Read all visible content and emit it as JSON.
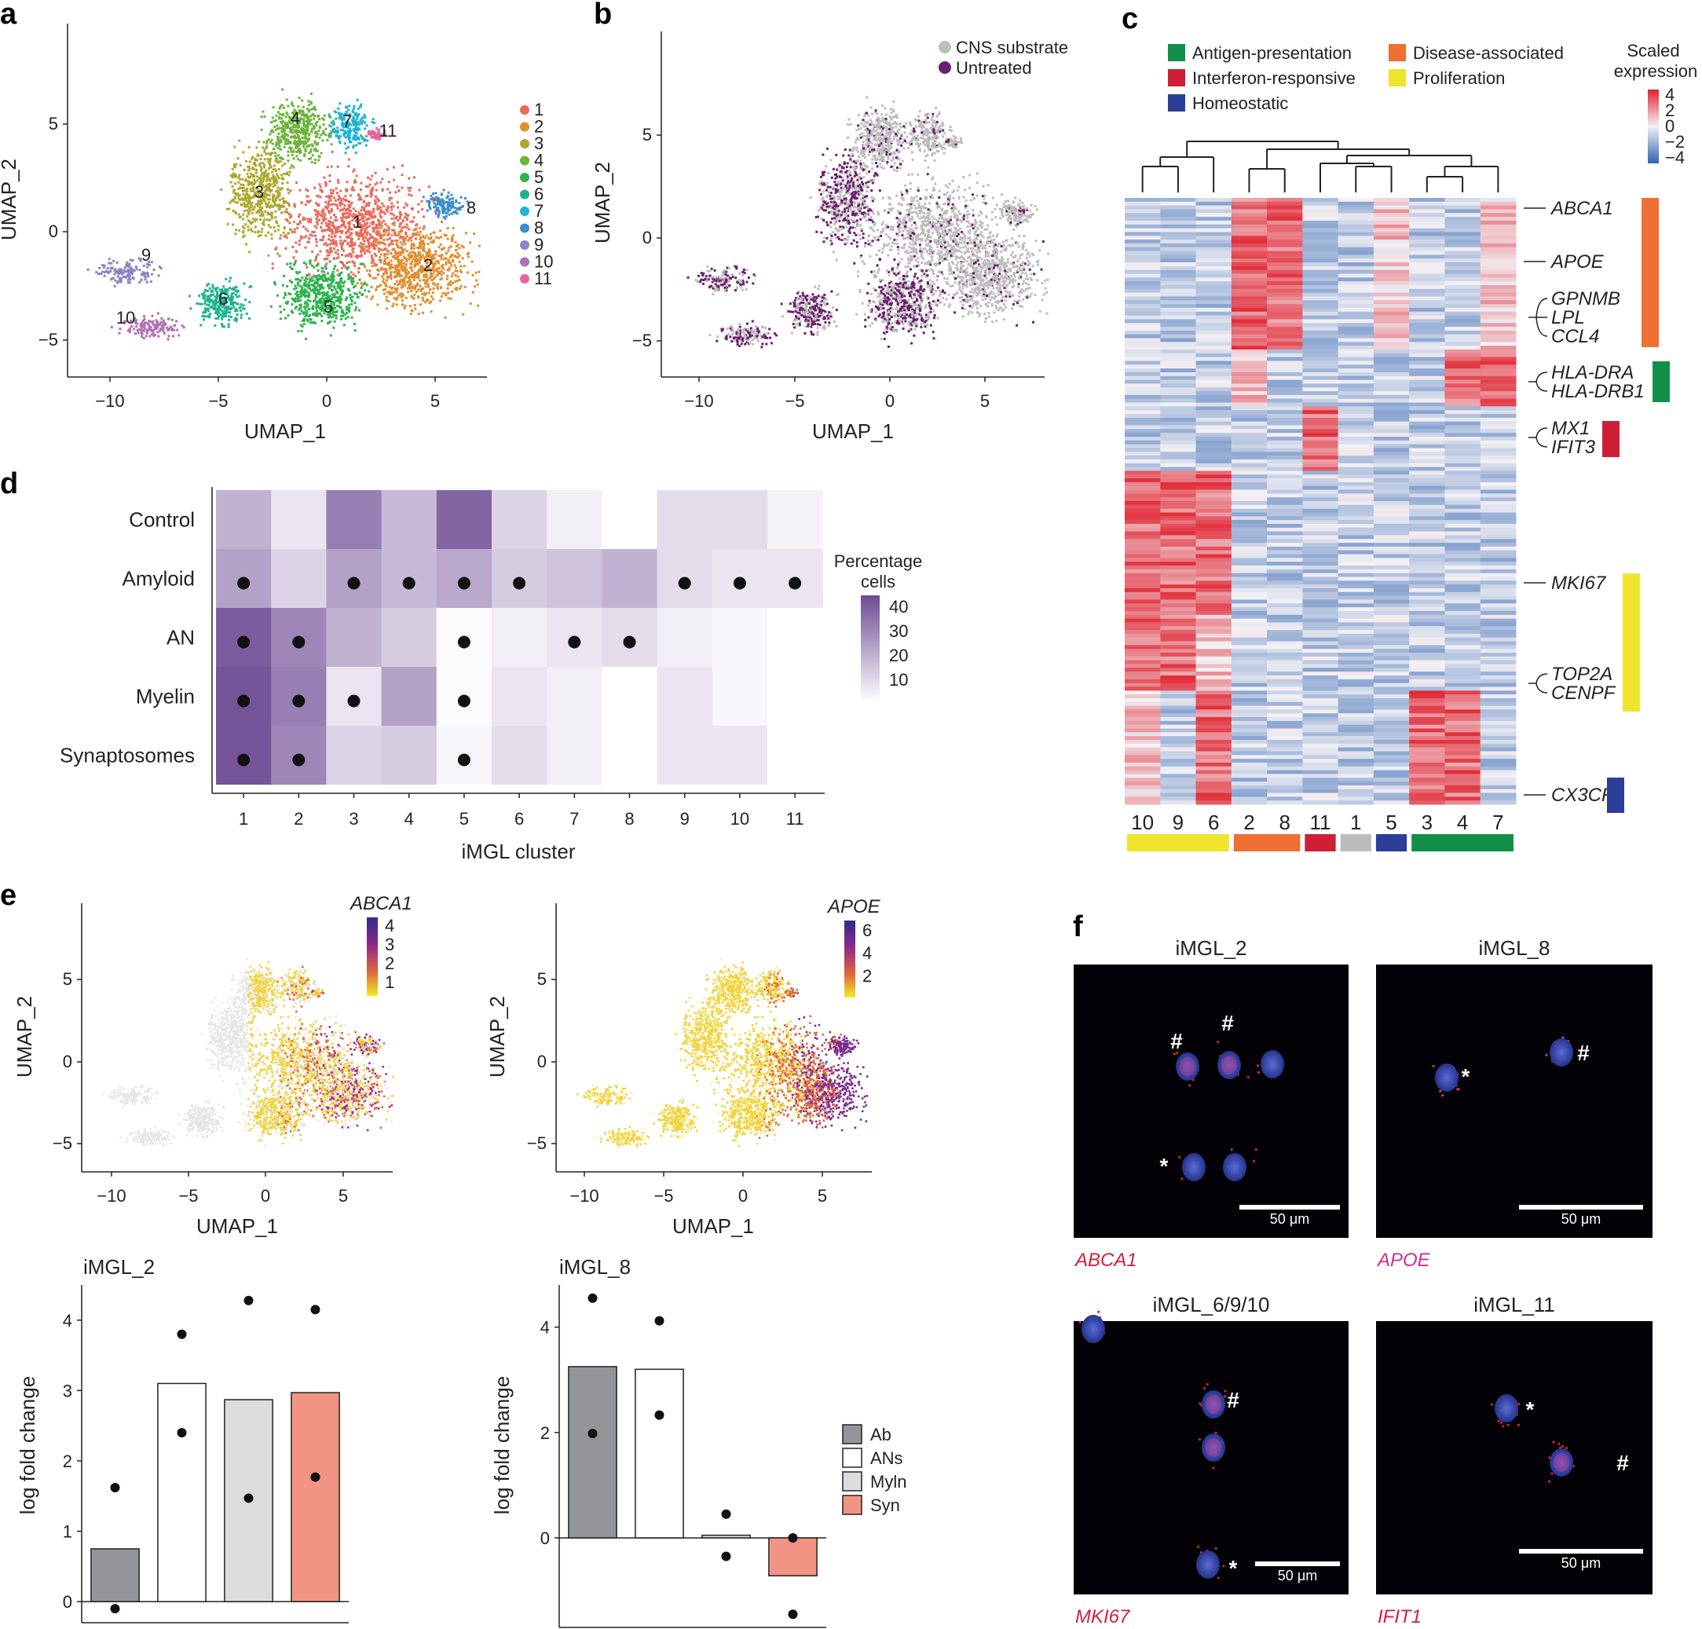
{
  "panels": {
    "a": {
      "label": "a",
      "xlabel": "UMAP_1",
      "ylabel": "UMAP_2",
      "xticks": [
        "−10",
        "−5",
        "0",
        "5"
      ],
      "yticks": [
        "5",
        "0",
        "−5"
      ],
      "clusters": [
        {
          "id": "1",
          "color": "#e86a5c"
        },
        {
          "id": "2",
          "color": "#e08e2f"
        },
        {
          "id": "3",
          "color": "#aea72b"
        },
        {
          "id": "4",
          "color": "#6cb43b"
        },
        {
          "id": "5",
          "color": "#2fb34e"
        },
        {
          "id": "6",
          "color": "#1fb391"
        },
        {
          "id": "7",
          "color": "#1fb4d1"
        },
        {
          "id": "8",
          "color": "#3c8ec9"
        },
        {
          "id": "9",
          "color": "#8c83c2"
        },
        {
          "id": "10",
          "color": "#b26fb3"
        },
        {
          "id": "11",
          "color": "#e5679b"
        }
      ]
    },
    "b": {
      "label": "b",
      "xlabel": "UMAP_1",
      "ylabel": "UMAP_2",
      "xticks": [
        "−10",
        "−5",
        "0",
        "5"
      ],
      "yticks": [
        "5",
        "0",
        "−5"
      ],
      "legend": [
        {
          "name": "CNS substrate",
          "color": "#bdbdbd"
        },
        {
          "name": "Untreated",
          "color": "#6b1f6e"
        }
      ]
    },
    "c": {
      "label": "c",
      "legend": [
        {
          "name": "Antigen-presentation",
          "color": "#12904a"
        },
        {
          "name": "Interferon-responsive",
          "color": "#cf1f36"
        },
        {
          "name": "Homeostatic",
          "color": "#2c3e97"
        },
        {
          "name": "Disease-associated",
          "color": "#ee7032"
        },
        {
          "name": "Proliferation",
          "color": "#eee52c"
        }
      ],
      "scale_title_1": "Scaled",
      "scale_title_2": "expression",
      "scale_ticks": [
        "4",
        "2",
        "0",
        "−2",
        "−4"
      ],
      "columns": [
        "10",
        "9",
        "6",
        "2",
        "8",
        "11",
        "1",
        "5",
        "3",
        "4",
        "7"
      ],
      "genes": [
        "ABCA1",
        "APOE",
        "GPNMB",
        "LPL",
        "CCL4",
        "HLA-DRA",
        "HLA-DRB1",
        "MX1",
        "IFIT3",
        "MKI67",
        "TOP2A",
        "CENPF",
        "CX3CR1"
      ]
    },
    "d": {
      "label": "d",
      "xlabel": "iMGL cluster",
      "rows": [
        "Control",
        "Amyloid",
        "AN",
        "Myelin",
        "Synaptosomes"
      ],
      "cols": [
        "1",
        "2",
        "3",
        "4",
        "5",
        "6",
        "7",
        "8",
        "9",
        "10",
        "11"
      ],
      "legend_title_1": "Percentage",
      "legend_title_2": "cells",
      "legend_ticks": [
        "40",
        "30",
        "20",
        "10"
      ],
      "values": [
        [
          18,
          6,
          30,
          16,
          36,
          10,
          4,
          0,
          8,
          8,
          3
        ],
        [
          22,
          10,
          22,
          16,
          20,
          12,
          14,
          18,
          8,
          6,
          6
        ],
        [
          38,
          28,
          18,
          12,
          1,
          4,
          6,
          8,
          4,
          2,
          0
        ],
        [
          40,
          30,
          6,
          22,
          1,
          6,
          4,
          0,
          6,
          2,
          0
        ],
        [
          40,
          28,
          10,
          12,
          2,
          8,
          4,
          0,
          6,
          6,
          0
        ]
      ],
      "dots": [
        [
          0,
          0,
          0,
          0,
          0,
          0,
          0,
          0,
          0,
          0,
          0
        ],
        [
          1,
          0,
          1,
          1,
          1,
          1,
          0,
          0,
          1,
          1,
          1
        ],
        [
          1,
          1,
          0,
          0,
          1,
          0,
          1,
          1,
          0,
          0,
          0
        ],
        [
          1,
          1,
          1,
          0,
          1,
          0,
          0,
          0,
          0,
          0,
          0
        ],
        [
          1,
          1,
          0,
          0,
          1,
          0,
          0,
          0,
          0,
          0,
          0
        ]
      ]
    },
    "e": {
      "label": "e",
      "xlabel": "UMAP_1",
      "ylabel": "UMAP_2",
      "xticks": [
        "−10",
        "−5",
        "0",
        "5"
      ],
      "yticks": [
        "5",
        "0",
        "−5"
      ],
      "abca1_title": "ABCA1",
      "abca1_ticks": [
        "4",
        "3",
        "2",
        "1"
      ],
      "apoe_title": "APOE",
      "apoe_ticks": [
        "6",
        "4",
        "2"
      ],
      "bar_ylabel": "log fold change",
      "bar_legend": [
        {
          "name": "Ab",
          "color": "#939598"
        },
        {
          "name": "ANs",
          "color": "#ffffff"
        },
        {
          "name": "Myln",
          "color": "#dcdddf"
        },
        {
          "name": "Syn",
          "color": "#f19483"
        }
      ]
    },
    "f": {
      "label": "f",
      "scale": "50 μm",
      "images": [
        {
          "title": "iMGL_2",
          "gene": "ABCA1"
        },
        {
          "title": "iMGL_8",
          "gene": "APOE"
        },
        {
          "title": "iMGL_6/9/10",
          "gene": "MKI67"
        },
        {
          "title": "iMGL_11",
          "gene": "IFIT1"
        }
      ]
    }
  },
  "chart_data": [
    {
      "type": "bar",
      "title": "iMGL_2",
      "categories": [
        "Ab",
        "ANs",
        "Myln",
        "Syn"
      ],
      "values": [
        0.75,
        3.1,
        2.87,
        2.97
      ],
      "points": [
        [
          1.62,
          -0.1
        ],
        [
          3.8,
          2.4
        ],
        [
          4.28,
          1.47
        ],
        [
          4.15,
          1.77
        ]
      ],
      "ylabel": "log fold change",
      "yticks": [
        0,
        1,
        2,
        3,
        4
      ],
      "ylim": [
        -0.3,
        4.5
      ]
    },
    {
      "type": "bar",
      "title": "iMGL_8",
      "categories": [
        "Ab",
        "ANs",
        "Myln",
        "Syn"
      ],
      "values": [
        3.25,
        3.2,
        0.05,
        -0.72
      ],
      "points": [
        [
          4.55,
          1.98
        ],
        [
          4.12,
          2.33
        ],
        [
          0.45,
          -0.35
        ],
        [
          0.0,
          -1.45
        ]
      ],
      "ylabel": "log fold change",
      "yticks": [
        0,
        2,
        4
      ],
      "ylim": [
        -1.7,
        4.8
      ]
    }
  ]
}
